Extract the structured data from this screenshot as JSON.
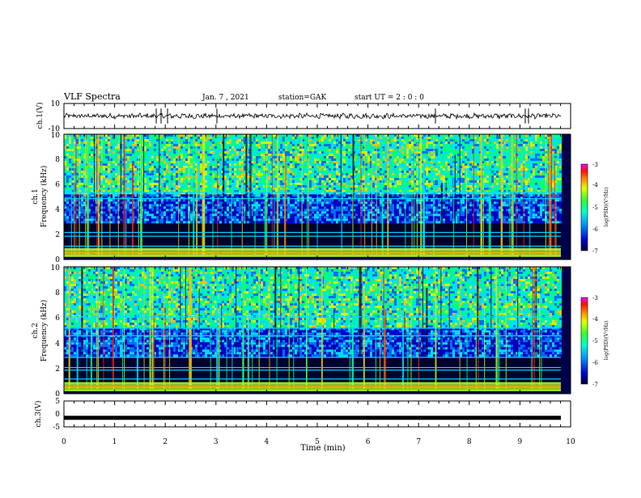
{
  "header": {
    "title": "VLF Spectra",
    "date": "Jan. 7 , 2021",
    "station": "station=GAK",
    "start": "start UT = 2 : 0 : 0"
  },
  "colors": {
    "colormap": [
      "#00003a",
      "#0000c8",
      "#0070ff",
      "#00e0ff",
      "#00ff80",
      "#c8ff00",
      "#ffc000",
      "#ff2000",
      "#ff00ff"
    ],
    "trace": "#000000"
  },
  "chart_data": [
    {
      "type": "line",
      "panel": "ch1-waveform",
      "ylabel": "ch.1(V)",
      "ylim": [
        -10,
        10
      ],
      "yticks": [
        "10",
        "-10"
      ],
      "baseline": 0,
      "note_values": "signal fluctuates roughly between -3 and +3 V around 0"
    },
    {
      "type": "heatmap",
      "panel": "ch1-spectrogram",
      "ylabel_line1": "ch.1",
      "ylabel_line2": "Frequency (kHz)",
      "ylim": [
        0,
        10
      ],
      "yticks": [
        "0",
        "2",
        "4",
        "6",
        "8",
        "10"
      ],
      "colorbar": {
        "label": "log(PSD)(V²/Hz)",
        "range": [
          -7,
          -3
        ],
        "ticks": [
          "-3",
          "-4",
          "-5",
          "-6",
          "-7"
        ]
      }
    },
    {
      "type": "heatmap",
      "panel": "ch2-spectrogram",
      "ylabel_line1": "ch.2",
      "ylabel_line2": "Frequency (kHz)",
      "ylim": [
        0,
        10
      ],
      "yticks": [
        "0",
        "2",
        "4",
        "6",
        "8",
        "10"
      ],
      "colorbar": {
        "label": "log(PSD)(V²/Hz)",
        "range": [
          -7,
          -3
        ],
        "ticks": [
          "-3",
          "-4",
          "-5",
          "-6",
          "-7"
        ]
      }
    },
    {
      "type": "line",
      "panel": "ch3-waveform",
      "ylabel": "ch.3(V)",
      "ylim": [
        -5,
        5
      ],
      "yticks": [
        "5",
        "0",
        "-5"
      ],
      "constant_value": -1.5
    }
  ],
  "xaxis": {
    "label": "Time (min)",
    "xlim": [
      0,
      10
    ],
    "ticks": [
      "0",
      "1",
      "2",
      "3",
      "4",
      "5",
      "6",
      "7",
      "8",
      "9",
      "10"
    ]
  }
}
